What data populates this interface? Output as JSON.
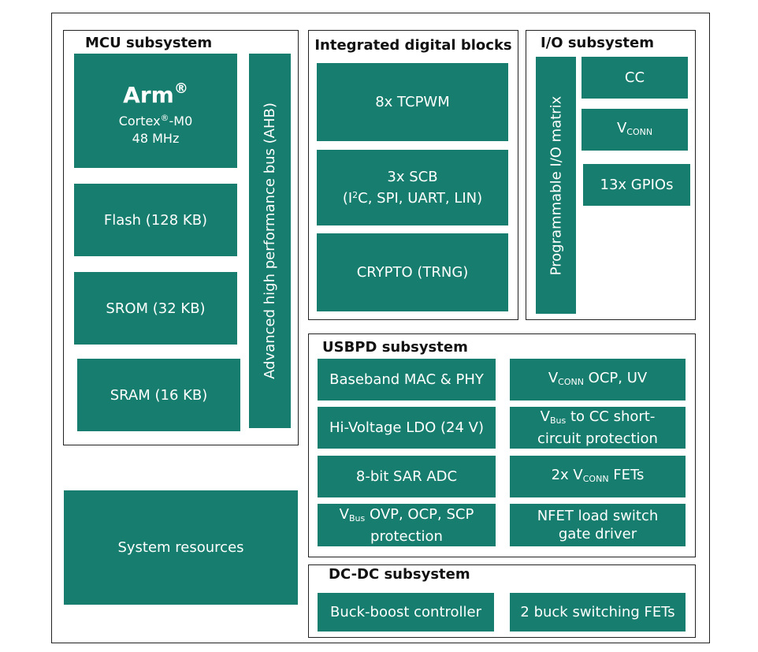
{
  "mcu": {
    "title": "MCU subsystem",
    "cpu": [
      [
        "Arm",
        {
          "sup": "®"
        }
      ],
      [
        "Cortex",
        {
          "sup": "®"
        },
        "-M0"
      ],
      [
        "48 MHz"
      ]
    ],
    "flash": [
      [
        "Flash (128 KB)"
      ]
    ],
    "srom": [
      [
        "SROM (32 KB)"
      ]
    ],
    "sram": [
      [
        "SRAM (16 KB)"
      ]
    ],
    "bus": [
      [
        "Advanced high performance bus (AHB)"
      ]
    ]
  },
  "system_resources": [
    [
      "System resources"
    ]
  ],
  "digital": {
    "title": "Integrated digital blocks",
    "tcpwm": [
      [
        "8x TCPWM"
      ]
    ],
    "scb": [
      [
        "3x SCB"
      ],
      [
        "(I",
        {
          "sup": "2"
        },
        "C, SPI, UART, LIN)"
      ]
    ],
    "crypto": [
      [
        "CRYPTO (TRNG)"
      ]
    ]
  },
  "io": {
    "title": "I/O subsystem",
    "matrix": [
      [
        "Programmable I/O matrix"
      ]
    ],
    "cc": [
      [
        "CC"
      ]
    ],
    "vconn": [
      [
        "V",
        {
          "sub": "CONN"
        }
      ]
    ],
    "gpios": [
      [
        "13x GPIOs"
      ]
    ]
  },
  "usbpd": {
    "title": "USBPD subsystem",
    "baseband": [
      [
        "Baseband MAC & PHY"
      ]
    ],
    "ldo": [
      [
        "Hi-Voltage LDO (24 V)"
      ]
    ],
    "adc": [
      [
        "8-bit SAR ADC"
      ]
    ],
    "vbus_prot": [
      [
        "V",
        {
          "sub": "Bus"
        },
        " OVP, OCP, SCP"
      ],
      [
        "protection"
      ]
    ],
    "vconn_ocp": [
      [
        "V",
        {
          "sub": "CONN"
        },
        " OCP, UV"
      ]
    ],
    "vbus_cc": [
      [
        "V",
        {
          "sub": "Bus"
        },
        " to CC short-"
      ],
      [
        "circuit protection"
      ]
    ],
    "vconn_fets": [
      [
        "2x V",
        {
          "sub": "CONN"
        },
        " FETs"
      ]
    ],
    "nfet": [
      [
        "NFET load switch"
      ],
      [
        "gate driver"
      ]
    ]
  },
  "dcdc": {
    "title": "DC-DC subsystem",
    "buck_boost": [
      [
        "Buck-boost controller"
      ]
    ],
    "buck_fets": [
      [
        "2 buck switching FETs"
      ]
    ]
  }
}
